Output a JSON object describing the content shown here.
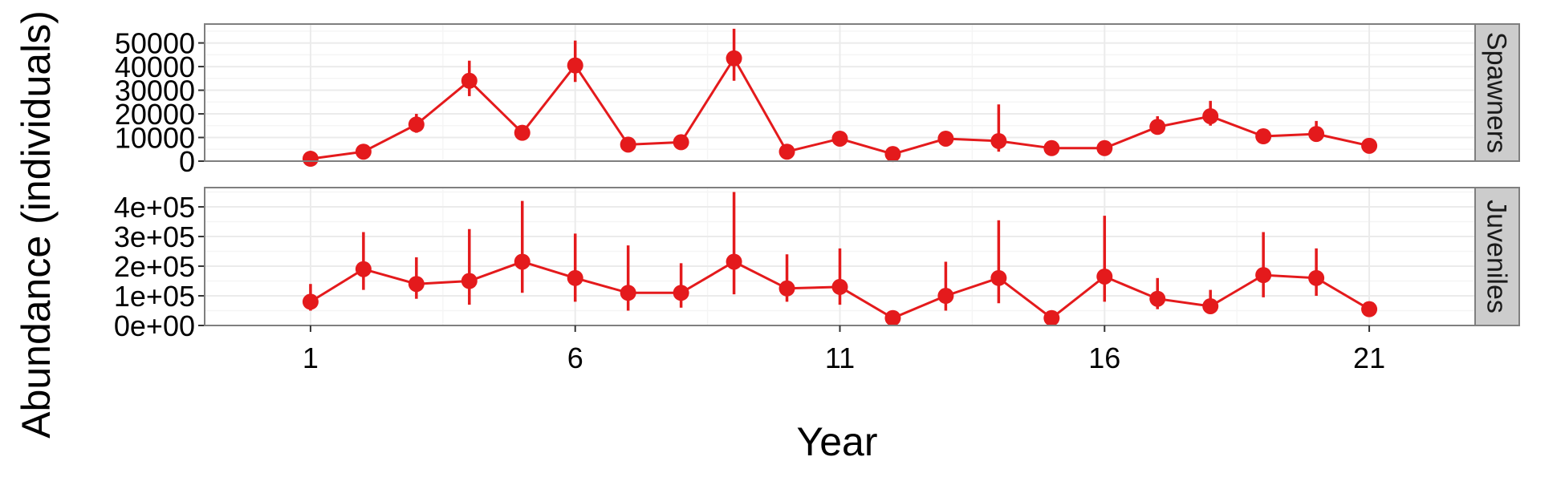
{
  "chart_data": {
    "type": "line",
    "xlabel": "Year",
    "ylabel": "Abundance (individuals)",
    "x_ticks": [
      1,
      6,
      11,
      16,
      21
    ],
    "xlim": [
      -1,
      23
    ],
    "colors": {
      "series": "#e41a1c",
      "panel_border": "#7f7f7f",
      "grid": "#ebebeb",
      "strip_bg": "#cccccc"
    },
    "grid": true,
    "panels": [
      {
        "name": "Spawners",
        "ylim": [
          0,
          58000
        ],
        "y_ticks": [
          0,
          10000,
          20000,
          30000,
          40000,
          50000
        ],
        "y_tick_labels": [
          "0",
          "10000",
          "20000",
          "30000",
          "40000",
          "50000"
        ],
        "x": [
          1,
          2,
          3,
          4,
          5,
          6,
          7,
          8,
          9,
          10,
          11,
          12,
          13,
          14,
          15,
          16,
          17,
          18,
          19,
          20,
          21
        ],
        "values": [
          1000,
          4000,
          15500,
          34000,
          12000,
          40500,
          7000,
          8000,
          43500,
          4000,
          9500,
          3000,
          9500,
          8500,
          5500,
          5500,
          14500,
          19000,
          10500,
          11500,
          6500
        ],
        "lower": [
          500,
          3000,
          12000,
          27500,
          10500,
          33500,
          6000,
          7000,
          34000,
          3000,
          8500,
          2500,
          8500,
          4000,
          4500,
          4500,
          12000,
          15000,
          9500,
          9500,
          5500
        ],
        "upper": [
          1500,
          5000,
          20000,
          42500,
          13500,
          51000,
          8000,
          9000,
          56000,
          5000,
          11000,
          4000,
          11000,
          24000,
          6500,
          6500,
          19000,
          25500,
          12000,
          17000,
          7500
        ]
      },
      {
        "name": "Juveniles",
        "ylim": [
          0,
          465000
        ],
        "y_ticks": [
          0,
          100000,
          200000,
          300000,
          400000
        ],
        "y_tick_labels": [
          "0e+00",
          "1e+05",
          "2e+05",
          "3e+05",
          "4e+05"
        ],
        "x": [
          1,
          2,
          3,
          4,
          5,
          6,
          7,
          8,
          9,
          10,
          11,
          12,
          13,
          14,
          15,
          16,
          17,
          18,
          19,
          20,
          21
        ],
        "values": [
          80000,
          190000,
          140000,
          150000,
          215000,
          160000,
          110000,
          110000,
          215000,
          125000,
          130000,
          25000,
          100000,
          160000,
          25000,
          165000,
          90000,
          65000,
          170000,
          160000,
          55000
        ],
        "lower": [
          50000,
          120000,
          90000,
          70000,
          110000,
          80000,
          50000,
          60000,
          105000,
          80000,
          70000,
          15000,
          50000,
          75000,
          15000,
          80000,
          55000,
          40000,
          95000,
          100000,
          40000
        ],
        "upper": [
          140000,
          315000,
          230000,
          325000,
          420000,
          310000,
          270000,
          210000,
          450000,
          240000,
          260000,
          30000,
          215000,
          355000,
          30000,
          370000,
          160000,
          120000,
          315000,
          260000,
          75000
        ]
      }
    ]
  }
}
